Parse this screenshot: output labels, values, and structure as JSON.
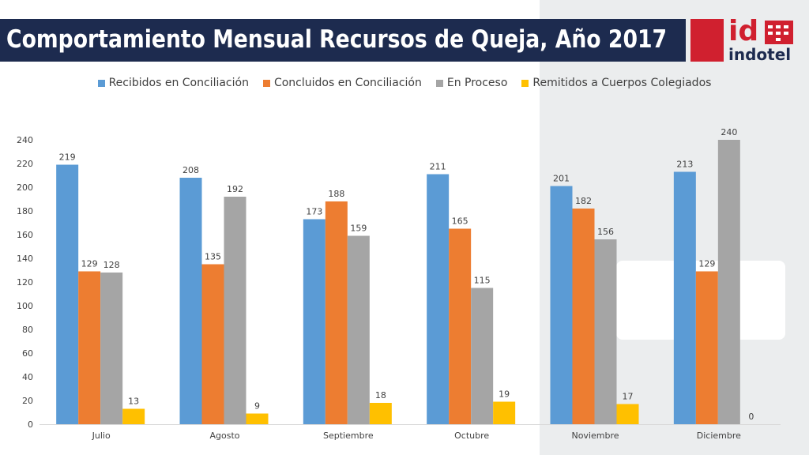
{
  "title": "Comportamiento Mensual Recursos de Queja, Año 2017",
  "logo": {
    "mark": "id",
    "name": "indotel"
  },
  "chart_data": {
    "type": "bar",
    "categories": [
      "Julio",
      "Agosto",
      "Septiembre",
      "Octubre",
      "Noviembre",
      "Diciembre"
    ],
    "series": [
      {
        "name": "Recibidos en Conciliación",
        "color": "#5b9bd5",
        "values": [
          219,
          208,
          173,
          211,
          201,
          213
        ]
      },
      {
        "name": "Concluidos en Conciliación",
        "color": "#ed7d31",
        "values": [
          129,
          135,
          188,
          165,
          182,
          129
        ]
      },
      {
        "name": "En Proceso",
        "color": "#a5a5a5",
        "values": [
          128,
          192,
          159,
          115,
          156,
          240
        ]
      },
      {
        "name": "Remitidos a Cuerpos Colegiados",
        "color": "#ffc000",
        "values": [
          13,
          9,
          18,
          19,
          17,
          0
        ]
      }
    ],
    "ylim": [
      0,
      240
    ],
    "yticks": [
      0,
      20,
      40,
      60,
      80,
      100,
      120,
      140,
      160,
      180,
      200,
      220,
      240
    ],
    "legend_position": "top",
    "grid": false,
    "data_labels": true
  }
}
